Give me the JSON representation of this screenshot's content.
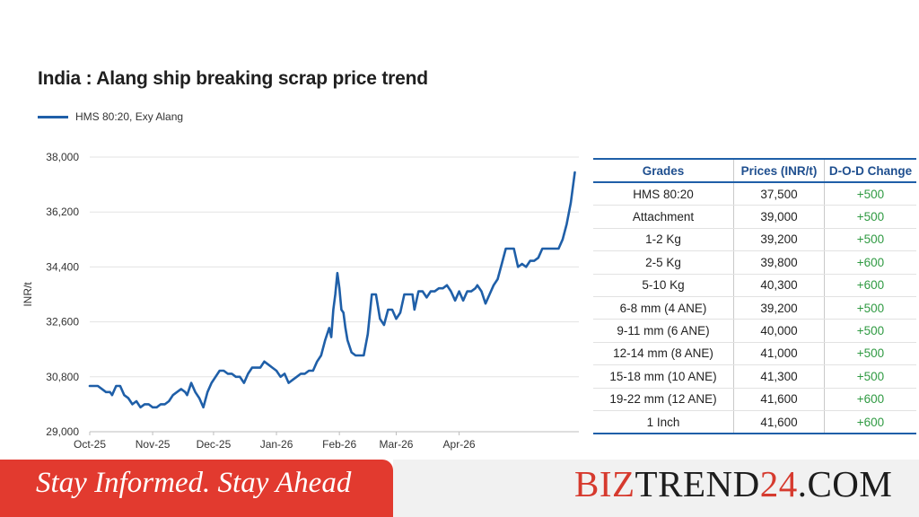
{
  "chart_data": {
    "type": "line",
    "title": "India : Alang ship breaking scrap price trend",
    "ylabel": "INR/t",
    "xlabel": "",
    "ylim": [
      29000,
      38000
    ],
    "yticks": [
      "38,000",
      "36,200",
      "34,400",
      "32,600",
      "30,800",
      "29,000"
    ],
    "ytick_values": [
      38000,
      36200,
      34400,
      32600,
      30800,
      29000
    ],
    "xticks": [
      "Oct-25",
      "Nov-25",
      "Dec-25",
      "Jan-26",
      "Feb-26",
      "Mar-26",
      "Apr-26"
    ],
    "grid": "horizontal",
    "legend_position": "top-left",
    "series": [
      {
        "name": "HMS 80:20, Exy Alang",
        "color": "#1f5fa8",
        "points": [
          [
            0,
            30500
          ],
          [
            2,
            30500
          ],
          [
            4,
            30500
          ],
          [
            6,
            30400
          ],
          [
            8,
            30300
          ],
          [
            10,
            30300
          ],
          [
            11,
            30200
          ],
          [
            13,
            30500
          ],
          [
            15,
            30500
          ],
          [
            17,
            30200
          ],
          [
            19,
            30100
          ],
          [
            21,
            29900
          ],
          [
            23,
            30000
          ],
          [
            25,
            29800
          ],
          [
            27,
            29900
          ],
          [
            29,
            29900
          ],
          [
            31,
            29800
          ],
          [
            33,
            29800
          ],
          [
            35,
            29900
          ],
          [
            37,
            29900
          ],
          [
            39,
            30000
          ],
          [
            41,
            30200
          ],
          [
            43,
            30300
          ],
          [
            45,
            30400
          ],
          [
            47,
            30300
          ],
          [
            48,
            30200
          ],
          [
            50,
            30600
          ],
          [
            52,
            30300
          ],
          [
            54,
            30100
          ],
          [
            56,
            29800
          ],
          [
            58,
            30300
          ],
          [
            60,
            30600
          ],
          [
            62,
            30800
          ],
          [
            64,
            31000
          ],
          [
            66,
            31000
          ],
          [
            68,
            30900
          ],
          [
            70,
            30900
          ],
          [
            72,
            30800
          ],
          [
            74,
            30800
          ],
          [
            76,
            30600
          ],
          [
            78,
            30900
          ],
          [
            80,
            31100
          ],
          [
            82,
            31100
          ],
          [
            84,
            31100
          ],
          [
            86,
            31300
          ],
          [
            88,
            31200
          ],
          [
            90,
            31100
          ],
          [
            92,
            31000
          ],
          [
            94,
            30800
          ],
          [
            96,
            30900
          ],
          [
            98,
            30600
          ],
          [
            100,
            30700
          ],
          [
            102,
            30800
          ],
          [
            104,
            30900
          ],
          [
            106,
            30900
          ],
          [
            108,
            31000
          ],
          [
            110,
            31000
          ],
          [
            112,
            31300
          ],
          [
            114,
            31500
          ],
          [
            116,
            32000
          ],
          [
            118,
            32400
          ],
          [
            119,
            32100
          ],
          [
            120,
            33000
          ],
          [
            121,
            33500
          ],
          [
            122,
            34200
          ],
          [
            123,
            33700
          ],
          [
            124,
            33000
          ],
          [
            125,
            32900
          ],
          [
            126,
            32400
          ],
          [
            127,
            32000
          ],
          [
            129,
            31600
          ],
          [
            131,
            31500
          ],
          [
            133,
            31500
          ],
          [
            135,
            31500
          ],
          [
            137,
            32200
          ],
          [
            139,
            33500
          ],
          [
            141,
            33500
          ],
          [
            143,
            32700
          ],
          [
            145,
            32500
          ],
          [
            147,
            33000
          ],
          [
            149,
            33000
          ],
          [
            151,
            32700
          ],
          [
            153,
            32900
          ],
          [
            155,
            33500
          ],
          [
            157,
            33500
          ],
          [
            159,
            33500
          ],
          [
            160,
            33000
          ],
          [
            162,
            33600
          ],
          [
            164,
            33600
          ],
          [
            166,
            33400
          ],
          [
            168,
            33600
          ],
          [
            170,
            33600
          ],
          [
            172,
            33700
          ],
          [
            174,
            33700
          ],
          [
            176,
            33800
          ],
          [
            178,
            33600
          ],
          [
            180,
            33300
          ],
          [
            182,
            33600
          ],
          [
            184,
            33300
          ],
          [
            186,
            33600
          ],
          [
            188,
            33600
          ],
          [
            190,
            33700
          ],
          [
            191,
            33800
          ],
          [
            193,
            33600
          ],
          [
            195,
            33200
          ],
          [
            197,
            33500
          ],
          [
            199,
            33800
          ],
          [
            201,
            34000
          ],
          [
            203,
            34500
          ],
          [
            205,
            35000
          ],
          [
            207,
            35000
          ],
          [
            209,
            35000
          ],
          [
            211,
            34400
          ],
          [
            213,
            34500
          ],
          [
            215,
            34400
          ],
          [
            217,
            34600
          ],
          [
            219,
            34600
          ],
          [
            221,
            34700
          ],
          [
            223,
            35000
          ],
          [
            225,
            35000
          ],
          [
            227,
            35000
          ],
          [
            229,
            35000
          ],
          [
            231,
            35000
          ],
          [
            233,
            35300
          ],
          [
            235,
            35800
          ],
          [
            237,
            36500
          ],
          [
            239,
            37500
          ]
        ]
      }
    ]
  },
  "table": {
    "headers": [
      "Grades",
      "Prices (INR/t)",
      "D-O-D Change"
    ],
    "rows": [
      [
        "HMS 80:20",
        "37,500",
        "+500"
      ],
      [
        "Attachment",
        "39,000",
        "+500"
      ],
      [
        "1-2 Kg",
        "39,200",
        "+500"
      ],
      [
        "2-5 Kg",
        "39,800",
        "+600"
      ],
      [
        "5-10 Kg",
        "40,300",
        "+600"
      ],
      [
        "6-8 mm (4 ANE)",
        "39,200",
        "+500"
      ],
      [
        "9-11 mm (6 ANE)",
        "40,000",
        "+500"
      ],
      [
        "12-14 mm (8 ANE)",
        "41,000",
        "+500"
      ],
      [
        "15-18 mm (10 ANE)",
        "41,300",
        "+500"
      ],
      [
        "19-22 mm (12 ANE)",
        "41,600",
        "+600"
      ],
      [
        "1 Inch",
        "41,600",
        "+600"
      ]
    ]
  },
  "banner": {
    "tagline": "Stay Informed. Stay Ahead",
    "brand_red_1": "BIZ",
    "brand_dark_1": "TREND",
    "brand_red_2": "24",
    "brand_dark_2": ".COM"
  },
  "colors": {
    "line": "#1f5fa8",
    "positive_change": "#2f9a42",
    "banner_red": "#e23a2f",
    "header_blue": "#1f4f8f"
  }
}
